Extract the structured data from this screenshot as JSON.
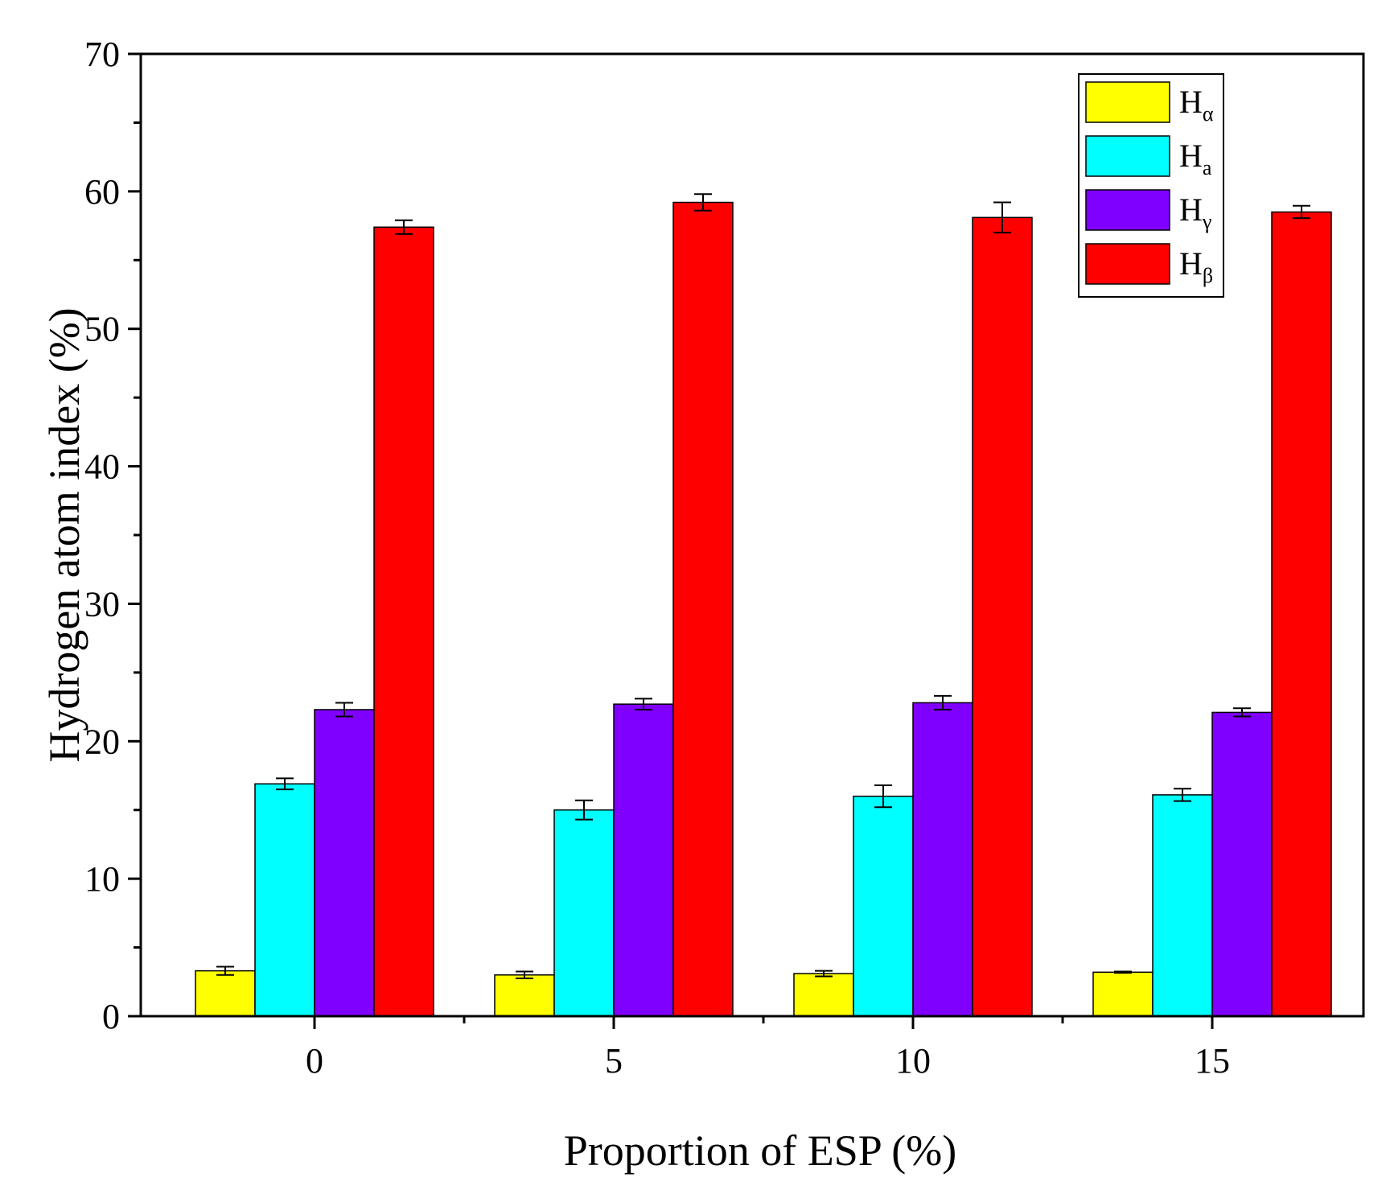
{
  "chart_data": {
    "type": "bar",
    "title": "",
    "xlabel": "Proportion of ESP (%)",
    "ylabel": "Hydrogen atom index (%)",
    "categories": [
      "0",
      "5",
      "10",
      "15"
    ],
    "ylim": [
      0,
      70
    ],
    "yticks": [
      0,
      10,
      20,
      30,
      40,
      50,
      60,
      70
    ],
    "yticks_labels": [
      "0",
      "10",
      "20",
      "30",
      "40",
      "50",
      "60",
      "70"
    ],
    "legend_position": "top-right",
    "series": [
      {
        "name": "Hα",
        "base": "H",
        "sub": "α",
        "color": "#ffff00",
        "values": [
          3.3,
          3.0,
          3.1,
          3.2
        ],
        "errors": [
          0.3,
          0.25,
          0.2,
          0.05
        ]
      },
      {
        "name": "Ha",
        "base": "H",
        "sub": "a",
        "color": "#00ffff",
        "values": [
          16.9,
          15.0,
          16.0,
          16.1
        ],
        "errors": [
          0.4,
          0.7,
          0.8,
          0.45
        ]
      },
      {
        "name": "Hγ",
        "base": "H",
        "sub": "γ",
        "color": "#8000ff",
        "values": [
          22.3,
          22.7,
          22.8,
          22.1
        ],
        "errors": [
          0.5,
          0.4,
          0.5,
          0.3
        ]
      },
      {
        "name": "Hβ",
        "base": "H",
        "sub": "β",
        "color": "#ff0000",
        "values": [
          57.4,
          59.2,
          58.1,
          58.5
        ],
        "errors": [
          0.5,
          0.6,
          1.1,
          0.45
        ]
      }
    ]
  }
}
